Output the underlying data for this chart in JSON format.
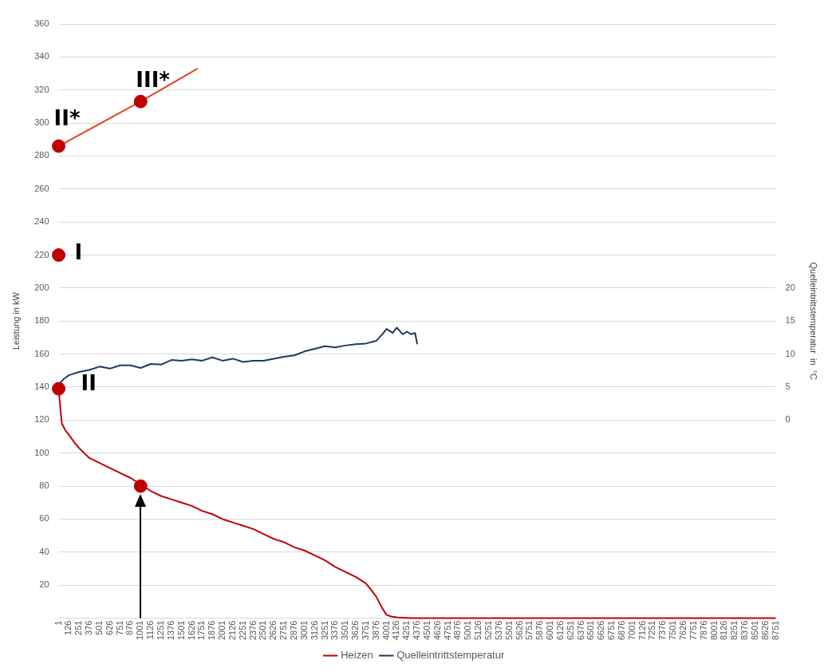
{
  "chart_data": {
    "type": "line",
    "ylabel": "Leistung in kW",
    "y2label": "Quelleintrittstemperatur  in  °C",
    "xlim": [
      1,
      8751
    ],
    "xticks": [
      1,
      126,
      251,
      376,
      501,
      626,
      751,
      876,
      1001,
      1126,
      1251,
      1376,
      1501,
      1626,
      1751,
      1876,
      2001,
      2126,
      2251,
      2376,
      2501,
      2626,
      2751,
      2876,
      3001,
      3126,
      3251,
      3376,
      3501,
      3626,
      3751,
      3876,
      4001,
      4126,
      4251,
      4376,
      4501,
      4626,
      4751,
      4876,
      5001,
      5126,
      5251,
      5376,
      5501,
      5626,
      5751,
      5876,
      6001,
      6126,
      6251,
      6376,
      6501,
      6626,
      6751,
      6876,
      7001,
      7126,
      7251,
      7376,
      7501,
      7626,
      7751,
      7876,
      8001,
      8126,
      8251,
      8376,
      8501,
      8626,
      8751
    ],
    "ylim": [
      0,
      360
    ],
    "yticks": [
      {
        "value": 0,
        "label": null
      },
      20,
      40,
      60,
      80,
      100,
      120,
      140,
      160,
      180,
      200,
      220,
      240,
      260,
      280,
      300,
      320,
      340,
      360
    ],
    "y2lim": [
      -30,
      60
    ],
    "y2ticks": [
      0,
      5,
      10,
      15,
      20
    ],
    "grid": "y",
    "legend": "bottom",
    "marker": "none",
    "series": [
      {
        "name": "Heizen",
        "color": "#c00000",
        "x": [
          1,
          20,
          40,
          80,
          126,
          200,
          251,
          376,
          501,
          626,
          751,
          876,
          1001,
          1126,
          1251,
          1376,
          1501,
          1626,
          1751,
          1876,
          2001,
          2126,
          2251,
          2376,
          2501,
          2626,
          2751,
          2876,
          3001,
          3126,
          3251,
          3376,
          3501,
          3626,
          3751,
          3800,
          3876,
          3950,
          4001,
          4060,
          4126,
          4300,
          8751
        ],
        "values": [
          139,
          128,
          118,
          114,
          111,
          106,
          103,
          97,
          94,
          91,
          88,
          85,
          81,
          77,
          74,
          72,
          70,
          68,
          65,
          63,
          60,
          58,
          56,
          54,
          51,
          48,
          46,
          43,
          41,
          38,
          35,
          31,
          28,
          25,
          21,
          18,
          13,
          6,
          2,
          1,
          0.5,
          0,
          0
        ]
      },
      {
        "name": "Quelleintrittstemperatur",
        "axis": "y2",
        "color": "#203864",
        "x": [
          1,
          30,
          60,
          126,
          251,
          376,
          501,
          626,
          751,
          876,
          1001,
          1126,
          1251,
          1376,
          1501,
          1626,
          1751,
          1876,
          2001,
          2126,
          2251,
          2376,
          2501,
          2626,
          2751,
          2876,
          3001,
          3126,
          3251,
          3376,
          3501,
          3626,
          3751,
          3876,
          3950,
          4001,
          4076,
          4126,
          4200,
          4250,
          4300,
          4350,
          4376
        ],
        "values": [
          4.7,
          5.8,
          6.2,
          6.8,
          7.3,
          7.6,
          8.1,
          7.8,
          8.3,
          8.3,
          7.9,
          8.5,
          8.4,
          9.1,
          9.0,
          9.2,
          9.0,
          9.5,
          9.0,
          9.3,
          8.8,
          9.0,
          9.0,
          9.3,
          9.6,
          9.8,
          10.4,
          10.8,
          11.2,
          11.0,
          11.3,
          11.5,
          11.6,
          12.0,
          13.0,
          13.8,
          13.2,
          14.0,
          13.0,
          13.4,
          13.0,
          13.2,
          11.5
        ]
      },
      {
        "color": "#e8401c",
        "x": [
          1,
          1001,
          1697
        ],
        "values": [
          286,
          313,
          333
        ]
      },
      {
        "type": "scatter",
        "color": "#c00000",
        "marker": "circle",
        "x": [
          1,
          1001,
          1,
          1,
          1001
        ],
        "values": [
          286,
          313,
          220,
          139,
          80
        ]
      }
    ],
    "annotations": [
      "II*",
      "III*",
      "I",
      "II"
    ]
  }
}
